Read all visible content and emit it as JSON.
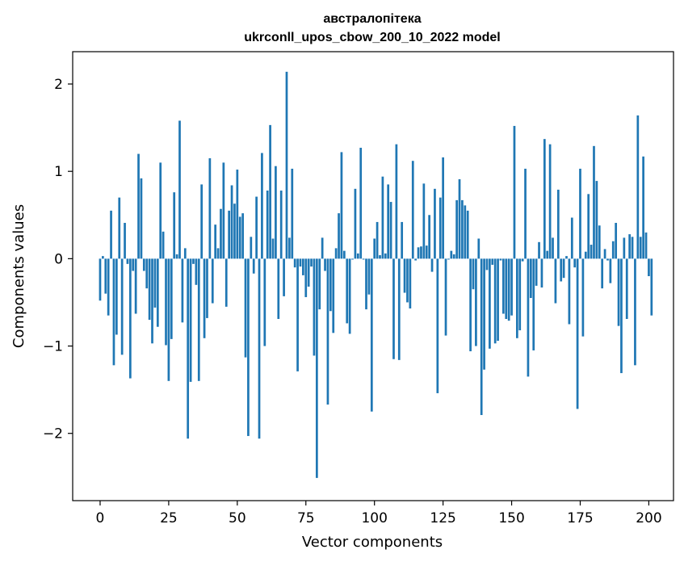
{
  "chart_data": {
    "type": "bar",
    "title_line1": "австралопітека",
    "title_line2": "ukrconll_upos_cbow_200_10_2022 model",
    "xlabel": "Vector components",
    "ylabel": "Components values",
    "xlim": [
      -10,
      209
    ],
    "ylim": [
      -2.77,
      2.37
    ],
    "x_ticks": [
      0,
      25,
      50,
      75,
      100,
      125,
      150,
      175,
      200
    ],
    "x_tick_labels": [
      "0",
      "25",
      "50",
      "75",
      "100",
      "125",
      "150",
      "175",
      "200"
    ],
    "y_ticks": [
      -2,
      -1,
      0,
      1,
      2
    ],
    "y_tick_labels": [
      "−2",
      "−1",
      "0",
      "1",
      "2"
    ],
    "bar_color": "#1f77b4",
    "grid": false,
    "values": [
      -0.48,
      0.03,
      -0.4,
      -0.65,
      0.55,
      -1.22,
      -0.87,
      0.7,
      -1.1,
      0.41,
      -0.06,
      -1.37,
      -0.14,
      -0.63,
      1.2,
      0.92,
      -0.14,
      -0.34,
      -0.7,
      -0.97,
      -0.56,
      -0.78,
      1.1,
      0.31,
      -0.99,
      -1.4,
      -0.92,
      0.76,
      0.05,
      1.58,
      -0.73,
      0.12,
      -2.06,
      -1.41,
      -0.06,
      -0.3,
      -1.4,
      0.85,
      -0.91,
      -0.68,
      1.15,
      -0.51,
      0.39,
      0.12,
      0.57,
      1.1,
      -0.55,
      0.55,
      0.84,
      0.63,
      1.02,
      0.48,
      0.52,
      -1.13,
      -2.03,
      0.25,
      -0.17,
      0.71,
      -2.06,
      1.21,
      -1.0,
      0.78,
      1.53,
      0.23,
      1.06,
      -0.69,
      0.78,
      -0.43,
      2.14,
      0.24,
      1.03,
      -0.1,
      -1.29,
      -0.09,
      -0.19,
      -0.44,
      -0.32,
      -0.09,
      -1.11,
      -2.51,
      -0.58,
      0.24,
      -0.14,
      -1.67,
      -0.6,
      -0.85,
      0.12,
      0.52,
      1.22,
      0.09,
      -0.74,
      -0.86,
      -0.01,
      0.8,
      0.06,
      1.27,
      -0.01,
      -0.58,
      -0.41,
      -1.75,
      0.23,
      0.42,
      0.04,
      0.94,
      0.06,
      0.85,
      0.65,
      -1.15,
      1.31,
      -1.16,
      0.42,
      -0.39,
      -0.5,
      -0.57,
      1.12,
      -0.02,
      0.13,
      0.14,
      0.86,
      0.15,
      0.5,
      -0.15,
      0.8,
      -1.54,
      0.7,
      1.16,
      -0.88,
      -0.01,
      0.09,
      0.05,
      0.67,
      0.91,
      0.67,
      0.61,
      0.55,
      -1.06,
      -0.35,
      -1.0,
      0.23,
      -1.79,
      -1.27,
      -0.13,
      -1.03,
      -0.07,
      -0.97,
      -0.94,
      -0.02,
      -0.63,
      -0.69,
      -0.71,
      -0.65,
      1.52,
      -0.91,
      -0.82,
      -0.03,
      1.03,
      -1.35,
      -0.45,
      -1.05,
      -0.31,
      0.19,
      -0.33,
      1.37,
      0.09,
      1.31,
      0.24,
      -0.51,
      0.79,
      -0.26,
      -0.22,
      0.03,
      -0.75,
      0.47,
      -0.1,
      -1.72,
      1.03,
      -0.89,
      0.08,
      0.74,
      0.16,
      1.29,
      0.89,
      0.38,
      -0.34,
      0.11,
      -0.02,
      -0.28,
      0.2,
      0.41,
      -0.77,
      -1.31,
      0.24,
      -0.69,
      0.28,
      0.25,
      -1.22,
      1.64,
      0.25,
      1.17,
      0.3,
      -0.2,
      -0.65
    ]
  }
}
